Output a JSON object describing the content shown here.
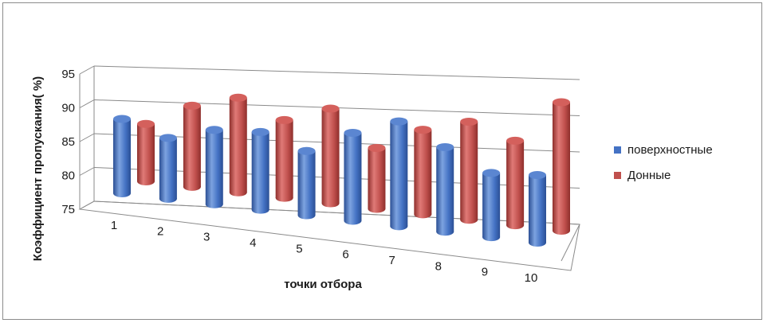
{
  "chart_data": {
    "type": "bar",
    "title": "",
    "xlabel": "точки отбора",
    "ylabel": "Коэффициент пропускания( %)",
    "ylim": [
      75,
      95
    ],
    "yticks": [
      "75",
      "80",
      "85",
      "90",
      "95"
    ],
    "categories": [
      "1",
      "2",
      "3",
      "4",
      "5",
      "6",
      "7",
      "8",
      "9",
      "10"
    ],
    "grid": true,
    "legend_position": "right",
    "series": [
      {
        "name": "поверхностные",
        "color": "#4472c4",
        "values": [
          86,
          84,
          86,
          86.5,
          84.5,
          88,
          90.5,
          87.5,
          84.5,
          85
        ]
      },
      {
        "name": "Донные",
        "color": "#c0504d",
        "values": [
          83.5,
          87,
          89,
          86.5,
          89,
          84,
          87.5,
          89.5,
          87.5,
          94
        ]
      }
    ]
  }
}
